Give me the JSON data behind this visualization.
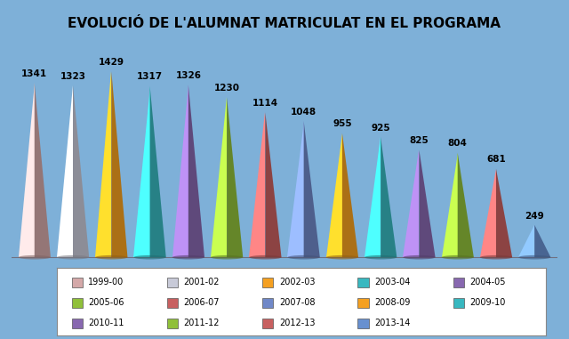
{
  "title": "EVOLUCIÓ DE L'ALUMNAT MATRICULAT EN EL PROGRAMA",
  "years": [
    "1999-00",
    "2001-02",
    "2002-03",
    "2003-04",
    "2004-05",
    "2005-06",
    "2006-07",
    "2007-08",
    "2008-09",
    "2009-10",
    "2010-11",
    "2011-12",
    "2012-13",
    "2013-14"
  ],
  "values": [
    1341,
    1323,
    1429,
    1317,
    1326,
    1230,
    1114,
    1048,
    955,
    925,
    825,
    804,
    681,
    249
  ],
  "cone_colors": [
    "#D4A8A8",
    "#C8CAD8",
    "#F5A020",
    "#38B8C0",
    "#8868B0",
    "#90C03A",
    "#C86060",
    "#7088C8",
    "#F5A020",
    "#38B8C0",
    "#8868B0",
    "#90C03A",
    "#C86060",
    "#6890D0"
  ],
  "bg_color": "#7EB0D8",
  "legend_colors": [
    "#7088C8",
    "#C86060",
    "#90C03A",
    "#8868B0",
    "#38B8C0",
    "#F5A020",
    "#7088C8",
    "#C86060",
    "#90C03A",
    "#8868B0",
    "#38B8C0",
    "#F5A020",
    "#C8CAD8",
    "#D4A8A8"
  ],
  "legend_labels": [
    "1999-00",
    "2001-02",
    "2002-03",
    "2003-04",
    "2004-05",
    "2005-06",
    "2006-07",
    "2007-08",
    "2008-09",
    "2009-10",
    "2010-11",
    "2011-12",
    "2012-13",
    "2013-14"
  ]
}
